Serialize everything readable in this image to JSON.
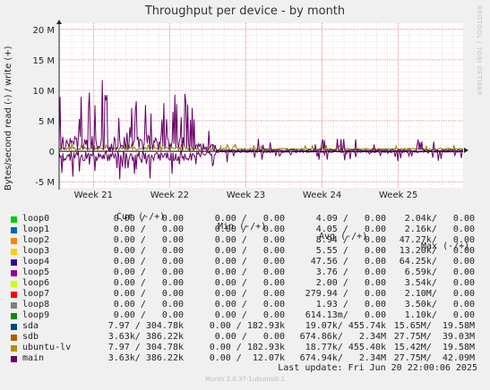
{
  "chart_data": {
    "type": "line",
    "title": "Throughput per device - by month",
    "side_label": "RRDTOOL / TOBI OETIKER",
    "ylabel": "Bytes/second read (-) / write (+)",
    "y_ticks": [
      {
        "v": 20000000,
        "label": "20 M"
      },
      {
        "v": 15000000,
        "label": "15 M"
      },
      {
        "v": 10000000,
        "label": "10 M"
      },
      {
        "v": 5000000,
        "label": "5 M"
      },
      {
        "v": 0,
        "label": "0"
      },
      {
        "v": -5000000,
        "label": "-5 M"
      }
    ],
    "ylim": [
      -6000000,
      21000000
    ],
    "x_ticks": [
      {
        "week": 21,
        "label": "Week 21"
      },
      {
        "week": 22,
        "label": "Week 22"
      },
      {
        "week": 23,
        "label": "Week 23"
      },
      {
        "week": 24,
        "label": "Week 24"
      },
      {
        "week": 25,
        "label": "Week 25"
      }
    ],
    "xlim": [
      20.55,
      25.85
    ],
    "grid": true,
    "series": [
      {
        "name": "main",
        "color": "#660066"
      },
      {
        "name": "sdb",
        "color": "#8a7f00"
      },
      {
        "name": "sda",
        "color": "#000000"
      }
    ]
  },
  "legend": {
    "headers": [
      "Cur (-/+)",
      "Min (-/+)",
      "Avg (-/+)",
      "Max (-/+)"
    ],
    "rows": [
      {
        "name": "loop0",
        "color": "#00cc00",
        "cur": "0.00 /   0.00",
        "min": "0.00 /   0.00",
        "avg": "4.09 /   0.00",
        "max": "2.04k/   0.00"
      },
      {
        "name": "loop1",
        "color": "#0066b3",
        "cur": "0.00 /   0.00",
        "min": "0.00 /   0.00",
        "avg": "4.05 /   0.00",
        "max": "2.16k/   0.00"
      },
      {
        "name": "loop2",
        "color": "#ff8000",
        "cur": "0.00 /   0.00",
        "min": "0.00 /   0.00",
        "avg": "8.94 /   0.00",
        "max": "47.27k/   0.00"
      },
      {
        "name": "loop3",
        "color": "#ffcc00",
        "cur": "0.00 /   0.00",
        "min": "0.00 /   0.00",
        "avg": "5.55 /   0.00",
        "max": "13.20k/   0.00"
      },
      {
        "name": "loop4",
        "color": "#330099",
        "cur": "0.00 /   0.00",
        "min": "0.00 /   0.00",
        "avg": "47.56 /   0.00",
        "max": "64.25k/   0.00"
      },
      {
        "name": "loop5",
        "color": "#990099",
        "cur": "0.00 /   0.00",
        "min": "0.00 /   0.00",
        "avg": "3.76 /   0.00",
        "max": "6.59k/   0.00"
      },
      {
        "name": "loop6",
        "color": "#ccff00",
        "cur": "0.00 /   0.00",
        "min": "0.00 /   0.00",
        "avg": "2.00 /   0.00",
        "max": "3.54k/   0.00"
      },
      {
        "name": "loop7",
        "color": "#ff0000",
        "cur": "0.00 /   0.00",
        "min": "0.00 /   0.00",
        "avg": "279.94 /   0.00",
        "max": "2.10M/   0.00"
      },
      {
        "name": "loop8",
        "color": "#808080",
        "cur": "0.00 /   0.00",
        "min": "0.00 /   0.00",
        "avg": "1.93 /   0.00",
        "max": "3.50k/   0.00"
      },
      {
        "name": "loop9",
        "color": "#008f00",
        "cur": "0.00 /   0.00",
        "min": "0.00 /   0.00",
        "avg": "614.13m/   0.00",
        "max": "1.10k/   0.00"
      },
      {
        "name": "sda",
        "color": "#00487d",
        "cur": "7.97 / 304.78k",
        "min": "0.00 / 182.93k",
        "avg": "19.07k/ 455.74k",
        "max": "15.65M/  19.58M"
      },
      {
        "name": "sdb",
        "color": "#b35a00",
        "cur": "3.63k/ 386.22k",
        "min": "0.00 /   0.00",
        "avg": "674.86k/   2.34M",
        "max": "27.75M/  39.03M"
      },
      {
        "name": "ubuntu-lv",
        "color": "#b38f00",
        "cur": "7.97 / 304.78k",
        "min": "0.00 / 182.93k",
        "avg": "18.77k/ 455.40k",
        "max": "15.42M/  19.58M"
      },
      {
        "name": "main",
        "color": "#6b006b",
        "cur": "3.63k/ 386.22k",
        "min": "0.00 /  12.07k",
        "avg": "674.94k/   2.34M",
        "max": "27.75M/  42.09M"
      }
    ]
  },
  "last_update": "Last update: Fri Jun 20 22:00:06 2025",
  "footer": "Munin 2.0.37-1ubuntu0.1"
}
